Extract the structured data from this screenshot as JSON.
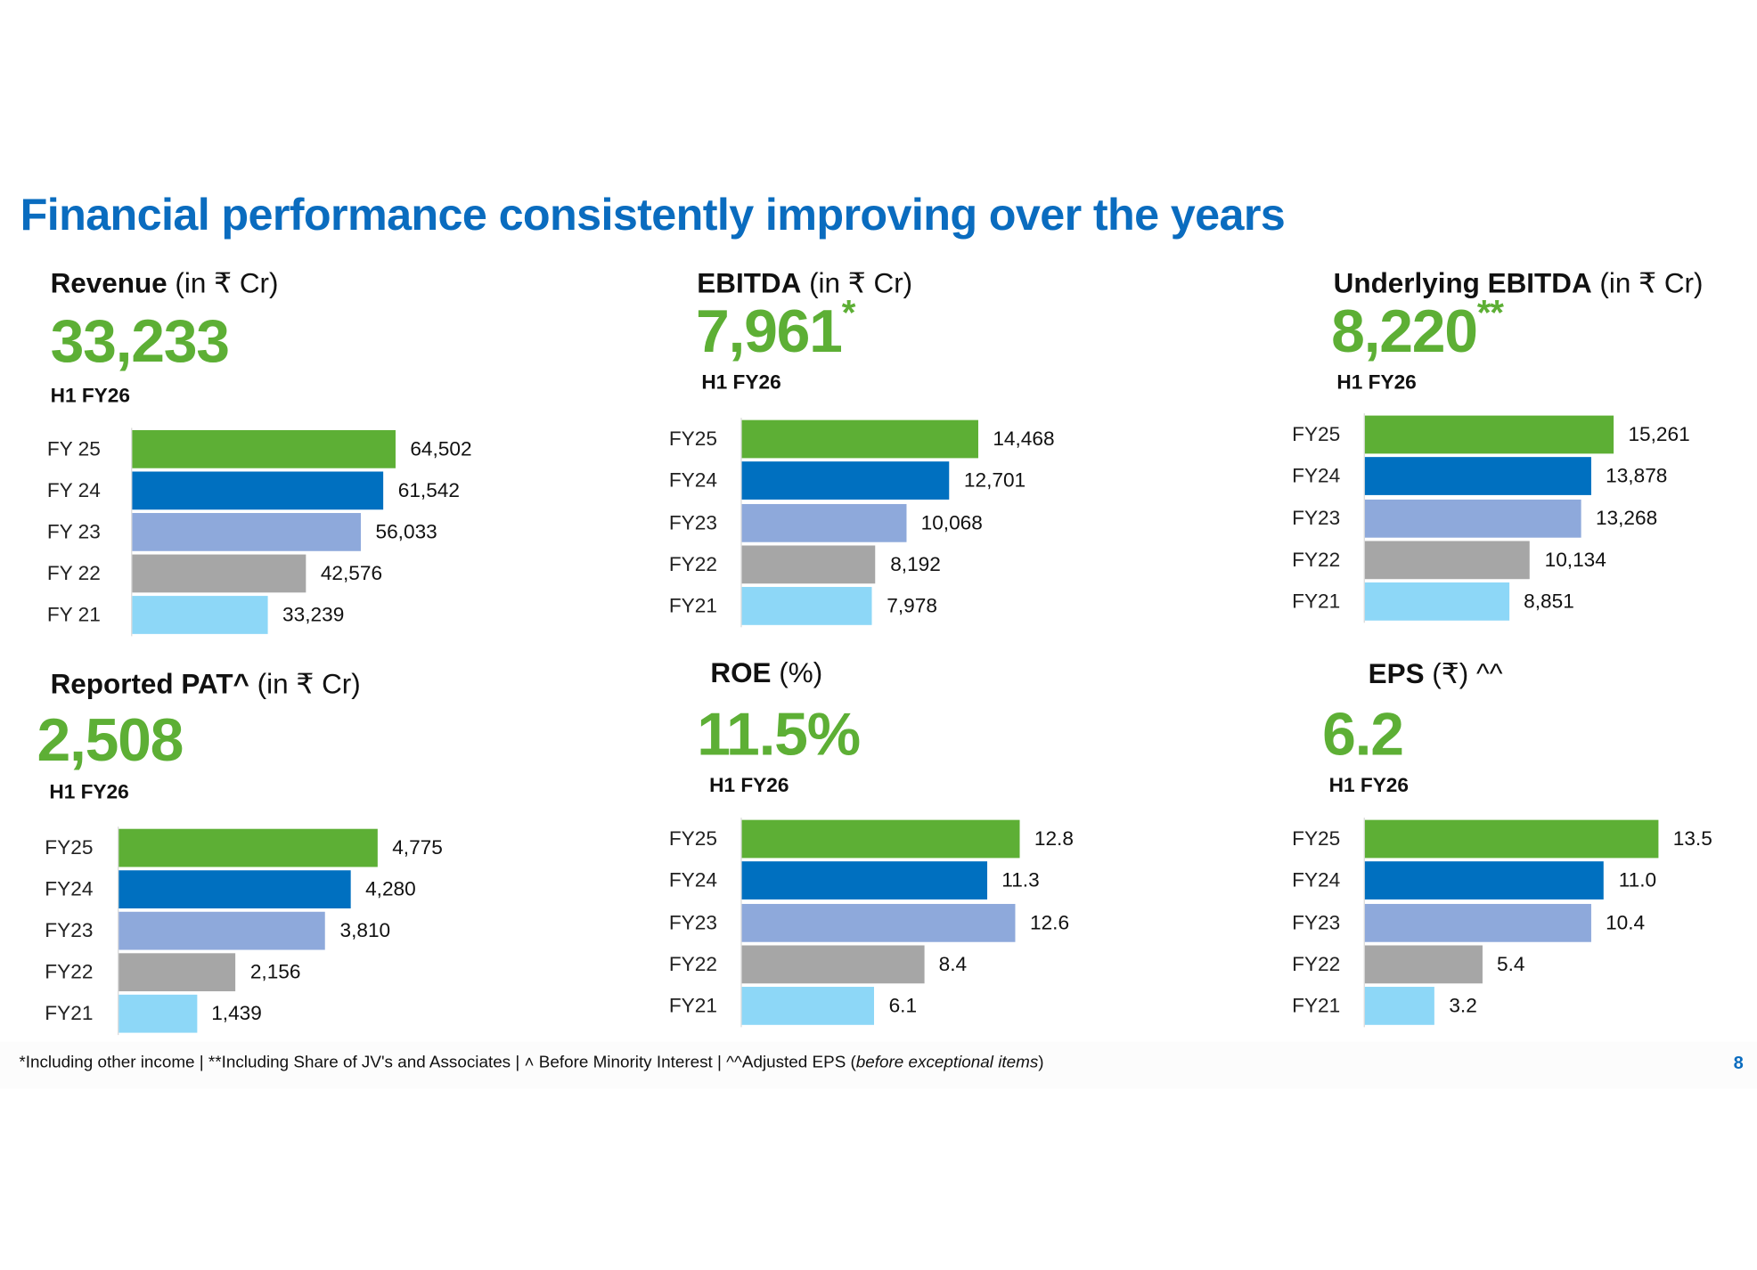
{
  "title": "Financial performance consistently improving over the years",
  "colors": {
    "FY25": "#5DAF35",
    "FY24": "#0070C0",
    "FY23": "#8EA9DB",
    "FY22": "#A6A6A6",
    "FY21": "#8DD7F7",
    "headline": "#5DAF35",
    "title": "#0A6CBF"
  },
  "panels": [
    {
      "heading_bold": "Revenue",
      "heading_rest": " (in ₹ Cr)",
      "headline": "33,233",
      "headline_mark": "",
      "period": "H1 FY26"
    },
    {
      "heading_bold": "EBITDA",
      "heading_rest": " (in ₹ Cr)",
      "headline": "7,961",
      "headline_mark": "*",
      "period": "H1 FY26"
    },
    {
      "heading_bold": "Underlying EBITDA",
      "heading_rest": " (in ₹ Cr)",
      "headline": "8,220",
      "headline_mark": "**",
      "period": "H1 FY26"
    },
    {
      "heading_bold": "Reported PAT^",
      "heading_rest": " (in ₹ Cr)",
      "headline": "2,508",
      "headline_mark": "",
      "period": "H1 FY26"
    },
    {
      "heading_bold": "ROE",
      "heading_rest": " (%)",
      "headline": "11.5%",
      "headline_mark": "",
      "period": "H1 FY26"
    },
    {
      "heading_bold": "EPS",
      "heading_rest": " (₹) ^^",
      "headline": "6.2",
      "headline_mark": "",
      "period": "H1 FY26"
    }
  ],
  "chart_data": [
    {
      "type": "bar",
      "orientation": "horizontal",
      "categories": [
        "FY 25",
        "FY 24",
        "FY 23",
        "FY 22",
        "FY 21"
      ],
      "values": [
        64502,
        61542,
        56033,
        42576,
        33239
      ],
      "labels": [
        "64,502",
        "61,542",
        "56,033",
        "42,576",
        "33,239"
      ]
    },
    {
      "type": "bar",
      "orientation": "horizontal",
      "categories": [
        "FY25",
        "FY24",
        "FY23",
        "FY22",
        "FY21"
      ],
      "values": [
        14468,
        12701,
        10068,
        8192,
        7978
      ],
      "labels": [
        "14,468",
        "12,701",
        "10,068",
        "8,192",
        "7,978"
      ]
    },
    {
      "type": "bar",
      "orientation": "horizontal",
      "categories": [
        "FY25",
        "FY24",
        "FY23",
        "FY22",
        "FY21"
      ],
      "values": [
        15261,
        13878,
        13268,
        10134,
        8851
      ],
      "labels": [
        "15,261",
        "13,878",
        "13,268",
        "10,134",
        "8,851"
      ]
    },
    {
      "type": "bar",
      "orientation": "horizontal",
      "categories": [
        "FY25",
        "FY24",
        "FY23",
        "FY22",
        "FY21"
      ],
      "values": [
        4775,
        4280,
        3810,
        2156,
        1439
      ],
      "labels": [
        "4,775",
        "4,280",
        "3,810",
        "2,156",
        "1,439"
      ]
    },
    {
      "type": "bar",
      "orientation": "horizontal",
      "categories": [
        "FY25",
        "FY24",
        "FY23",
        "FY22",
        "FY21"
      ],
      "values": [
        12.8,
        11.3,
        12.6,
        8.4,
        6.1
      ],
      "labels": [
        "12.8",
        "11.3",
        "12.6",
        "8.4",
        "6.1"
      ]
    },
    {
      "type": "bar",
      "orientation": "horizontal",
      "categories": [
        "FY25",
        "FY24",
        "FY23",
        "FY22",
        "FY21"
      ],
      "values": [
        13.5,
        11.0,
        10.4,
        5.4,
        3.2
      ],
      "labels": [
        "13.5",
        "11.0",
        "10.4",
        "5.4",
        "3.2"
      ]
    }
  ],
  "footnote": {
    "main": "*Including other income | **Including Share of JV's and Associates | ˄ Before Minority Interest | ^^Adjusted EPS (",
    "italic": "before exceptional items",
    "end": ")"
  },
  "page_number": "8"
}
